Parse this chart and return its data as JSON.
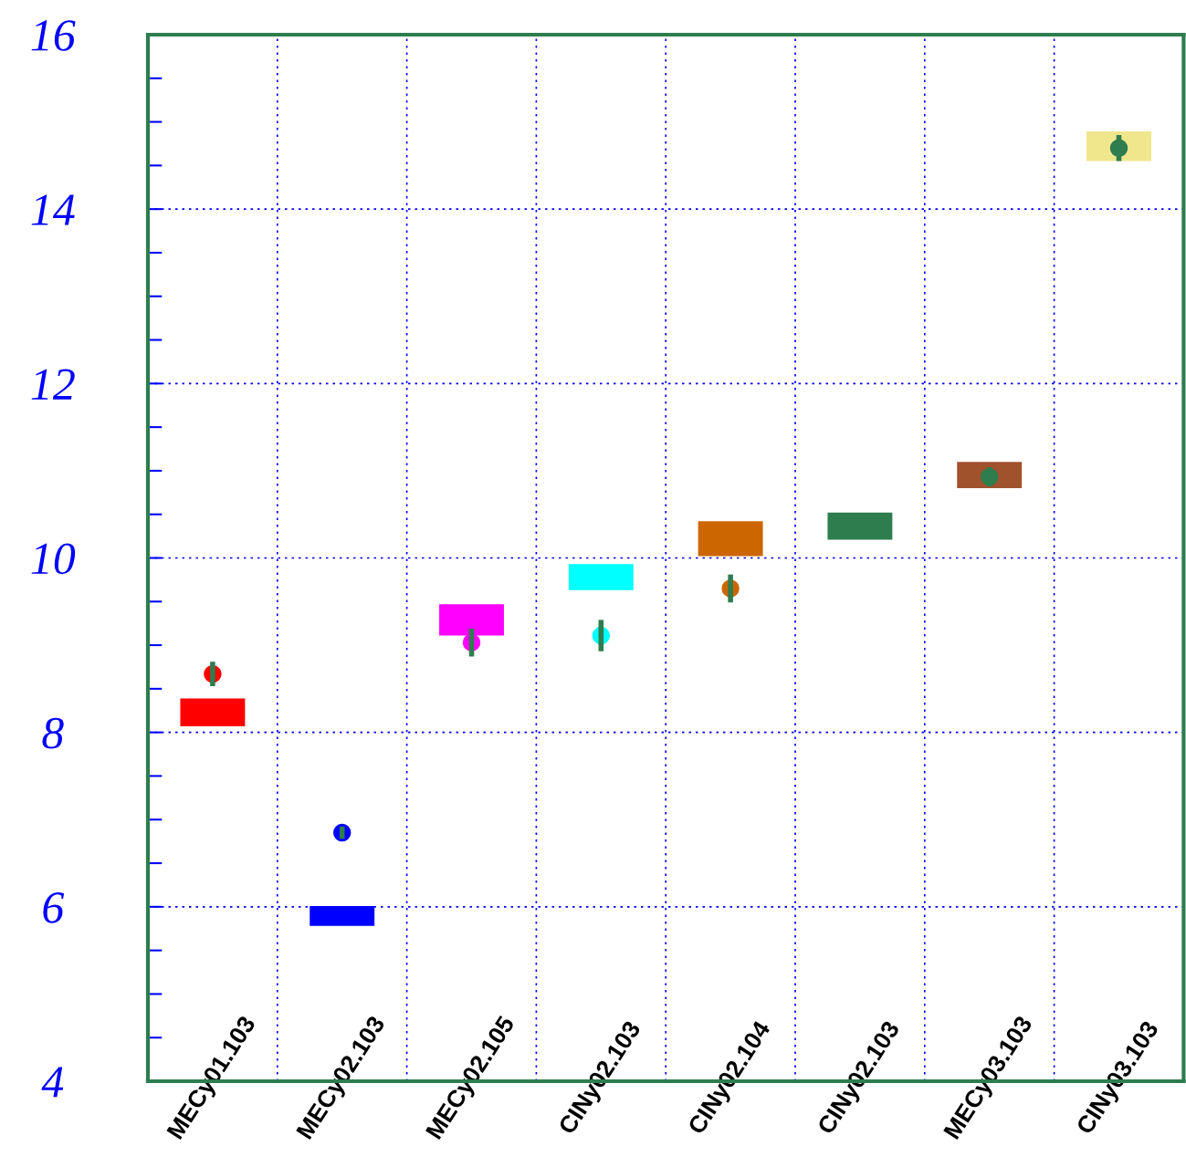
{
  "chart_data": {
    "type": "bar",
    "categories": [
      "MECy01.103",
      "MECy02.103",
      "MECy02.105",
      "CINy02.103",
      "CINy02.104",
      "CINy02.103",
      "MECy03.103",
      "CINy03.103"
    ],
    "series": [
      {
        "colors": [
          "#ff0000",
          "#0000ff",
          "#ff00ff",
          "#00ffff",
          "#cc6600",
          "#2e7d4f",
          "#a0522d",
          "#f0e68c"
        ],
        "base": [
          8.07,
          5.78,
          9.11,
          9.63,
          10.02,
          10.21,
          10.8,
          14.55
        ],
        "values": [
          0.32,
          0.23,
          0.36,
          0.3,
          0.4,
          0.31,
          0.3,
          0.34
        ]
      },
      {
        "type": "scatter",
        "colors": [
          "#ff0000",
          "#0000ff",
          "#ff00ff",
          "#00ffff",
          "#cc6600",
          "#2e7d4f",
          "#2e7d4f",
          "#2e7d4f"
        ],
        "values": [
          8.67,
          6.85,
          9.03,
          9.11,
          9.65,
          null,
          10.93,
          14.7
        ],
        "errors": [
          0.14,
          0.07,
          0.16,
          0.18,
          0.16,
          null,
          0.11,
          0.15
        ]
      }
    ],
    "ylim": [
      4,
      16
    ],
    "yticks": [
      4,
      6,
      8,
      10,
      12,
      14,
      16
    ],
    "grid": true,
    "marker": "circle"
  }
}
